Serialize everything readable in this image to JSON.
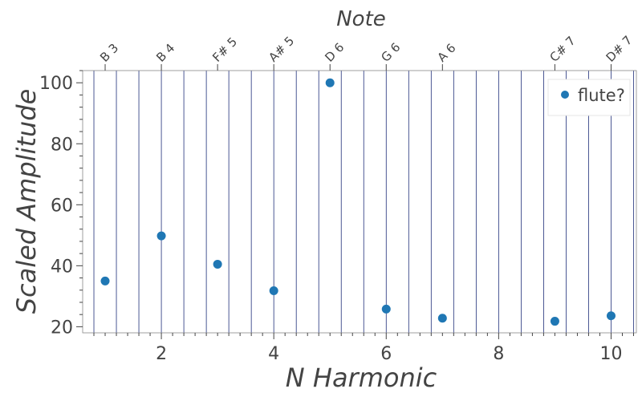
{
  "chart_data": {
    "type": "scatter",
    "title": "",
    "xlabel": "N Harmonic",
    "ylabel": "Scaled Amplitude",
    "top_axis_label": "Note",
    "xlim": [
      0.6,
      10.45
    ],
    "ylim": [
      18,
      104
    ],
    "x_ticks": [
      2,
      4,
      6,
      8,
      10
    ],
    "y_ticks": [
      20,
      40,
      60,
      80,
      100
    ],
    "grid": "vertical lines at every harmonic and subdivision",
    "legend_position": "top-right",
    "colors": {
      "points": "#1f77b4",
      "grid": "#1f2f7a",
      "text": "#444444"
    },
    "series": [
      {
        "name": "flute?",
        "points": [
          {
            "x": 1,
            "y": 35
          },
          {
            "x": 2,
            "y": 49.8
          },
          {
            "x": 3,
            "y": 40.5
          },
          {
            "x": 4,
            "y": 31.8
          },
          {
            "x": 5,
            "y": 100
          },
          {
            "x": 6,
            "y": 25.8
          },
          {
            "x": 7,
            "y": 22.8
          },
          {
            "x": 9,
            "y": 21.8
          },
          {
            "x": 10,
            "y": 23.6
          }
        ]
      }
    ],
    "notes": [
      {
        "x": 1,
        "label": "B 3"
      },
      {
        "x": 2,
        "label": "B 4"
      },
      {
        "x": 3,
        "label": "F# 5"
      },
      {
        "x": 4,
        "label": "A# 5"
      },
      {
        "x": 5,
        "label": "D 6"
      },
      {
        "x": 6,
        "label": "G 6"
      },
      {
        "x": 7,
        "label": "A 6"
      },
      {
        "x": 9,
        "label": "C# 7"
      },
      {
        "x": 10,
        "label": "D# 7"
      }
    ]
  }
}
